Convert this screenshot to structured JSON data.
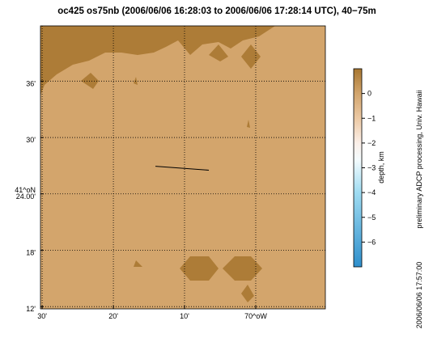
{
  "map": {
    "title": "oc425 os75nb (2006/06/06 16:28:03 to 2006/06/06 17:28:14 UTC), 40−75m",
    "xlim": [
      -70.504,
      -69.837
    ],
    "ylim": [
      41.196,
      41.698
    ],
    "xticks": [
      {
        "value": -70.5,
        "label": "30'"
      },
      {
        "value": -70.3333,
        "label": "20'"
      },
      {
        "value": -70.1667,
        "label": "10'"
      },
      {
        "value": -70.0,
        "label": "70^oW"
      }
    ],
    "yticks": [
      {
        "value": 41.6,
        "label": "36'"
      },
      {
        "value": 41.5,
        "label": "30'"
      },
      {
        "value": 41.4,
        "label": "24.00'"
      },
      {
        "value": 41.3,
        "label": "18'"
      },
      {
        "value": 41.2,
        "label": "12'"
      }
    ],
    "lat_degree_label": "41^oN",
    "grid": true,
    "track": {
      "lon": [
        -70.2348,
        -70.1098
      ],
      "lat": [
        41.449,
        41.442
      ],
      "color": "#000000"
    },
    "colorbar": {
      "label": "depth, km",
      "clim": [
        -7,
        1
      ],
      "ticks": [
        0,
        {
          "value": -1,
          "label": "−1"
        },
        {
          "value": -2,
          "label": "−2"
        },
        {
          "value": -3,
          "label": "−3"
        },
        {
          "value": -4,
          "label": "−4"
        },
        {
          "value": -5,
          "label": "−5"
        },
        {
          "value": -6,
          "label": "−6"
        }
      ]
    },
    "credit": "preliminary ADCP processing,  Univ. Hawaii",
    "timestamp": "2006/06/06 17:57:00"
  }
}
